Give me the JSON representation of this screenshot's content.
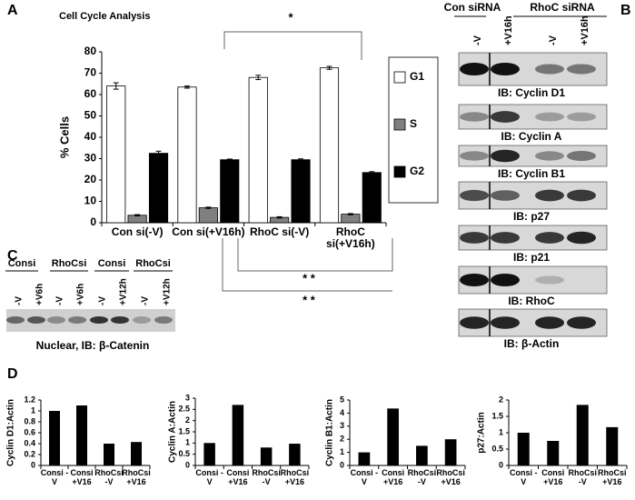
{
  "chart_data": [
    {
      "type": "bar",
      "title": "Cell Cycle Analysis",
      "y_label": "% Cells",
      "categories": [
        "Con si(-V)",
        "Con si(+V16h)",
        "RhoC si(-V)",
        "RhoC si(+V16h)"
      ],
      "series": [
        {
          "name": "G1",
          "color": "#ffffff",
          "values": [
            64,
            63.5,
            68,
            72.5
          ],
          "errors": [
            1.5,
            0.5,
            1,
            0.7
          ]
        },
        {
          "name": "S",
          "color": "#808080",
          "values": [
            3.5,
            7,
            2.5,
            4
          ],
          "errors": [
            0.3,
            0.3,
            0.3,
            0.3
          ]
        },
        {
          "name": "G2",
          "color": "#000000",
          "values": [
            32.5,
            29.5,
            29.5,
            23.5
          ],
          "errors": [
            1,
            0.3,
            0.4,
            0.4
          ]
        }
      ],
      "ylim": [
        0,
        80
      ],
      "yticks": [
        0,
        10,
        20,
        30,
        40,
        50,
        60,
        70,
        80
      ],
      "legend": "right",
      "annotations": [
        "*",
        "* *",
        "* *"
      ]
    },
    {
      "type": "bar",
      "y_label": "Cyclin D1:Actin",
      "color": "#000000",
      "categories": [
        "Consi -V",
        "Consi +V16",
        "RhoCsi -V",
        "RhoCsi +V16"
      ],
      "values": [
        1,
        1.1,
        0.4,
        0.43
      ],
      "ylim": [
        0,
        1.2
      ],
      "yticks": [
        0,
        0.2,
        0.4,
        0.6,
        0.8,
        1,
        1.2
      ]
    },
    {
      "type": "bar",
      "y_label": "Cyclin A:Actin",
      "color": "#000000",
      "categories": [
        "Consi -V",
        "Consi +V16",
        "RhoCsi -V",
        "RhoCsi +V16"
      ],
      "values": [
        1,
        2.7,
        0.8,
        0.97
      ],
      "ylim": [
        0,
        3
      ],
      "yticks": [
        0,
        0.5,
        1,
        1.5,
        2,
        2.5,
        3
      ]
    },
    {
      "type": "bar",
      "y_label": "Cyclin B1:Actin",
      "color": "#000000",
      "categories": [
        "Consi -V",
        "Consi +V16",
        "RhoCsi -V",
        "RhoCsi +V16"
      ],
      "values": [
        1,
        4.35,
        1.5,
        2
      ],
      "ylim": [
        0,
        5
      ],
      "yticks": [
        0,
        1,
        2,
        3,
        4,
        5
      ]
    },
    {
      "type": "bar",
      "y_label": "p27:Actin",
      "color": "#000000",
      "categories": [
        "Consi -V",
        "Consi +V16",
        "RhoCsi -V",
        "RhoCsi +V16"
      ],
      "values": [
        1,
        0.75,
        1.85,
        1.17
      ],
      "ylim": [
        0,
        2
      ],
      "yticks": [
        0,
        0.5,
        1,
        1.5,
        2
      ]
    }
  ],
  "panel_labels": [
    "A",
    "B",
    "C",
    "D"
  ],
  "blot_b": {
    "groups": [
      "Con siRNA",
      "RhoC siRNA"
    ],
    "lanes": [
      "-V",
      "+V16h",
      "-V",
      "+V16h"
    ],
    "labels": [
      "IB: Cyclin D1",
      "IB: Cyclin A",
      "IB: Cyclin B1",
      "IB: p27",
      "IB: p21",
      "IB: RhoC",
      "IB: β-Actin"
    ]
  },
  "blot_c": {
    "groups": [
      "Consi",
      "RhoCsi",
      "Consi",
      "RhoCsi"
    ],
    "lanes": [
      "-V",
      "+V6h",
      "-V",
      "+V6h",
      "-V",
      "+V12h",
      "-V",
      "+V12h"
    ],
    "caption": "Nuclear, IB: β-Catenin"
  }
}
